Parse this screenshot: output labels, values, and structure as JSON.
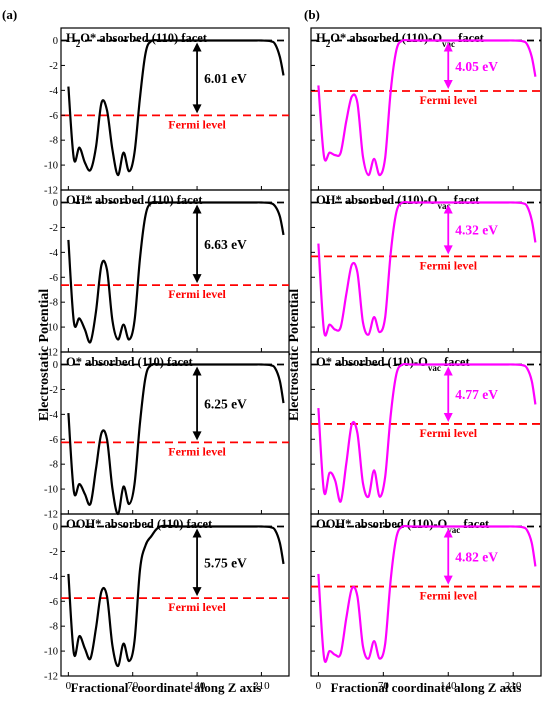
{
  "panel_letters": [
    "(a)",
    "(b)"
  ],
  "ylabel": "Electrostatic Potential",
  "xlabel": "Fractional coordinate along Z axis",
  "fermi_label": "Fermi level",
  "colors": {
    "left_curve": "#000000",
    "right_curve": "#ff00ff",
    "fermi": "#ff0000",
    "vacuum": "#000000",
    "left_arrow": "#000000",
    "right_arrow": "#ff00ff"
  },
  "chart_data": [
    {
      "type": "line",
      "column": "left",
      "row": 0,
      "title": "H₂O* absorbed (110) facet",
      "title_parts": [
        {
          "t": "H"
        },
        {
          "t": "2",
          "sub": true
        },
        {
          "t": "O* absorbed (110) facet"
        }
      ],
      "gap_label": "6.01 eV",
      "fermi": -6.01,
      "xlim": [
        -8,
        240
      ],
      "ylim": [
        -12,
        0.5
      ],
      "xticks": [
        "0",
        "70",
        "140",
        "210"
      ],
      "yticks": [
        "0",
        "-2",
        "-4",
        "-6",
        "-8",
        "-10",
        "-12"
      ],
      "series": [
        {
          "x": [
            0,
            6,
            12,
            18,
            24,
            30,
            36,
            42,
            48,
            54,
            60,
            66,
            72,
            78,
            84,
            90,
            100,
            120,
            140,
            160,
            180,
            200,
            210,
            220,
            225,
            230,
            234
          ],
          "y": [
            -3.7,
            -9.5,
            -8.6,
            -9.8,
            -10.4,
            -8.6,
            -5.0,
            -5.6,
            -8.8,
            -10.8,
            -9.0,
            -10.5,
            -9.0,
            -4.5,
            -1.0,
            -0.05,
            0,
            0,
            0,
            0,
            0,
            0,
            0,
            -0.05,
            -0.3,
            -1.3,
            -2.8
          ]
        }
      ]
    },
    {
      "type": "line",
      "column": "right",
      "row": 0,
      "title": "H₂O* absorbed (110)-Ovac facet",
      "title_parts": [
        {
          "t": "H"
        },
        {
          "t": "2",
          "sub": true
        },
        {
          "t": "O* absorbed (110)-O"
        },
        {
          "t": "vac",
          "sub": true
        },
        {
          "t": " facet"
        }
      ],
      "gap_label": "4.05 eV",
      "fermi": -4.05,
      "xlim": [
        -8,
        240
      ],
      "ylim": [
        -12,
        0.5
      ],
      "xticks": [
        "0",
        "70",
        "140",
        "210"
      ],
      "yticks": [],
      "series": [
        {
          "x": [
            0,
            6,
            12,
            18,
            24,
            30,
            36,
            42,
            48,
            54,
            60,
            66,
            72,
            78,
            84,
            90,
            100,
            120,
            140,
            160,
            180,
            200,
            210,
            220,
            225,
            230,
            234
          ],
          "y": [
            -3.6,
            -9.3,
            -9.0,
            -9.2,
            -9.0,
            -6.5,
            -4.5,
            -5.0,
            -9.3,
            -10.8,
            -9.5,
            -10.8,
            -9.4,
            -4.0,
            -0.8,
            -0.02,
            0,
            0,
            0,
            0,
            0,
            0,
            0,
            -0.05,
            -0.3,
            -1.3,
            -2.9
          ]
        }
      ]
    },
    {
      "type": "line",
      "column": "left",
      "row": 1,
      "title": "OH* absorbed (110) facet",
      "title_parts": [
        {
          "t": "OH* absorbed (110) facet"
        }
      ],
      "gap_label": "6.63 eV",
      "fermi": -6.63,
      "xlim": [
        -8,
        240
      ],
      "ylim": [
        -12,
        0.5
      ],
      "xticks": [
        "0",
        "70",
        "140",
        "210"
      ],
      "yticks": [
        "0",
        "-2",
        "-4",
        "-6",
        "-8",
        "-10",
        "-12"
      ],
      "series": [
        {
          "x": [
            0,
            6,
            12,
            18,
            24,
            30,
            36,
            42,
            48,
            54,
            60,
            66,
            72,
            78,
            84,
            90,
            100,
            120,
            140,
            160,
            180,
            200,
            210,
            220,
            225,
            230,
            234
          ],
          "y": [
            -3.0,
            -9.6,
            -9.3,
            -10.2,
            -11.2,
            -8.8,
            -5.0,
            -5.4,
            -9.5,
            -11.0,
            -9.8,
            -11.0,
            -9.5,
            -4.4,
            -1.0,
            -0.05,
            0,
            0,
            0,
            0,
            0,
            0,
            0,
            -0.05,
            -0.3,
            -1.1,
            -2.6
          ]
        }
      ]
    },
    {
      "type": "line",
      "column": "right",
      "row": 1,
      "title": "OH* absorbed (110)-Ovac facet",
      "title_parts": [
        {
          "t": "OH* absorbed (110)-O"
        },
        {
          "t": "vac",
          "sub": true
        },
        {
          "t": " facet"
        }
      ],
      "gap_label": "4.32 eV",
      "fermi": -4.32,
      "xlim": [
        -8,
        240
      ],
      "ylim": [
        -12,
        0.5
      ],
      "xticks": [
        "0",
        "70",
        "140",
        "210"
      ],
      "yticks": [],
      "series": [
        {
          "x": [
            0,
            6,
            12,
            18,
            24,
            30,
            36,
            42,
            48,
            54,
            60,
            66,
            72,
            78,
            84,
            90,
            100,
            120,
            140,
            160,
            180,
            200,
            210,
            220,
            225,
            230,
            234
          ],
          "y": [
            -3.3,
            -10.3,
            -9.8,
            -10.2,
            -10.0,
            -7.4,
            -5.0,
            -5.6,
            -9.6,
            -10.6,
            -9.2,
            -10.4,
            -9.2,
            -4.0,
            -0.8,
            -0.02,
            0,
            0,
            0,
            0,
            0,
            0,
            0,
            -0.05,
            -0.3,
            -1.4,
            -3.2
          ]
        }
      ]
    },
    {
      "type": "line",
      "column": "left",
      "row": 2,
      "title": "O* absorbed (110) facet",
      "title_parts": [
        {
          "t": "O* absorbed (110) facet"
        }
      ],
      "gap_label": "6.25 eV",
      "fermi": -6.25,
      "xlim": [
        -8,
        240
      ],
      "ylim": [
        -12,
        0.5
      ],
      "xticks": [
        "0",
        "70",
        "140",
        "210"
      ],
      "yticks": [
        "0",
        "-2",
        "-4",
        "-6",
        "-8",
        "-10",
        "-12"
      ],
      "series": [
        {
          "x": [
            0,
            6,
            12,
            18,
            24,
            30,
            36,
            42,
            48,
            54,
            60,
            66,
            72,
            78,
            84,
            90,
            100,
            120,
            140,
            160,
            180,
            200,
            210,
            220,
            225,
            230,
            234
          ],
          "y": [
            -3.9,
            -10.2,
            -9.6,
            -10.4,
            -11.2,
            -8.4,
            -5.5,
            -6.0,
            -10.0,
            -12.0,
            -9.8,
            -11.2,
            -9.6,
            -4.6,
            -1.0,
            -0.05,
            0,
            0,
            0,
            0,
            0,
            0,
            0,
            -0.05,
            -0.3,
            -1.3,
            -3.1
          ]
        }
      ]
    },
    {
      "type": "line",
      "column": "right",
      "row": 2,
      "title": "O* absorbed (110)-Ovac facet",
      "title_parts": [
        {
          "t": "O* absorbed (110)-O"
        },
        {
          "t": "vac",
          "sub": true
        },
        {
          "t": " facet"
        }
      ],
      "gap_label": "4.77 eV",
      "fermi": -4.77,
      "xlim": [
        -8,
        240
      ],
      "ylim": [
        -12,
        0.5
      ],
      "xticks": [
        "0",
        "70",
        "140",
        "210"
      ],
      "yticks": [],
      "series": [
        {
          "x": [
            0,
            6,
            12,
            18,
            24,
            30,
            36,
            42,
            48,
            54,
            60,
            66,
            72,
            78,
            84,
            90,
            100,
            120,
            140,
            160,
            180,
            200,
            210,
            220,
            225,
            230,
            234
          ],
          "y": [
            -3.5,
            -10.2,
            -8.7,
            -9.3,
            -11.0,
            -8.0,
            -4.8,
            -5.5,
            -9.5,
            -10.6,
            -8.5,
            -10.6,
            -9.0,
            -4.0,
            -0.8,
            -0.02,
            0,
            0,
            0,
            0,
            0,
            0,
            0,
            -0.05,
            -0.3,
            -1.3,
            -3.2
          ]
        }
      ]
    },
    {
      "type": "line",
      "column": "left",
      "row": 3,
      "title": "OOH* absorbed (110) facet",
      "title_parts": [
        {
          "t": "OOH* absorbed (110) facet"
        }
      ],
      "gap_label": "5.75 eV",
      "fermi": -5.75,
      "xlim": [
        -8,
        240
      ],
      "ylim": [
        -12,
        0.5
      ],
      "xticks": [
        "0",
        "70",
        "140",
        "210"
      ],
      "yticks": [
        "0",
        "-2",
        "-4",
        "-6",
        "-8",
        "-10",
        "-12"
      ],
      "series": [
        {
          "x": [
            0,
            6,
            12,
            18,
            24,
            30,
            36,
            42,
            48,
            54,
            60,
            66,
            72,
            78,
            84,
            90,
            100,
            120,
            140,
            160,
            180,
            200,
            210,
            220,
            225,
            230,
            234
          ],
          "y": [
            -3.8,
            -10.2,
            -8.8,
            -9.8,
            -10.6,
            -8.2,
            -5.2,
            -5.6,
            -9.6,
            -11.2,
            -9.4,
            -10.8,
            -9.2,
            -3.4,
            -1.5,
            -0.8,
            0,
            0,
            0,
            0,
            0,
            0,
            0,
            -0.05,
            -0.3,
            -1.3,
            -3.0
          ]
        }
      ]
    },
    {
      "type": "line",
      "column": "right",
      "row": 3,
      "title": "OOH* absorbed (110)-Ovac facet",
      "title_parts": [
        {
          "t": "OOH* absorbed (110)-O"
        },
        {
          "t": "vac",
          "sub": true
        },
        {
          "t": " facet"
        }
      ],
      "gap_label": "4.82 eV",
      "fermi": -4.82,
      "xlim": [
        -8,
        240
      ],
      "ylim": [
        -12,
        0.5
      ],
      "xticks": [
        "0",
        "70",
        "140",
        "210"
      ],
      "yticks": [],
      "series": [
        {
          "x": [
            0,
            6,
            12,
            18,
            24,
            30,
            36,
            42,
            48,
            54,
            60,
            66,
            72,
            78,
            84,
            90,
            100,
            120,
            140,
            160,
            180,
            200,
            210,
            220,
            225,
            230,
            234
          ],
          "y": [
            -3.8,
            -10.5,
            -10.0,
            -10.3,
            -10.2,
            -7.4,
            -5.0,
            -5.6,
            -9.6,
            -10.6,
            -9.2,
            -10.6,
            -9.4,
            -4.2,
            -0.9,
            -0.02,
            0,
            0,
            0,
            0,
            0,
            0,
            0,
            -0.05,
            -0.3,
            -1.3,
            -3.2
          ]
        }
      ]
    }
  ]
}
